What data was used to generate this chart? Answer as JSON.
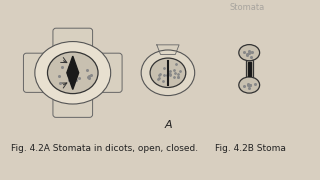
{
  "bg_color": "#d8cfc0",
  "fig_label_A": "A",
  "caption_left": "Fig. 4.2A Stomata in dicots, open, closed.",
  "caption_right": "Fig. 4.2B Stoma",
  "title_right": "Stomata",
  "caption_fontsize": 6.5,
  "label_fontsize": 8
}
